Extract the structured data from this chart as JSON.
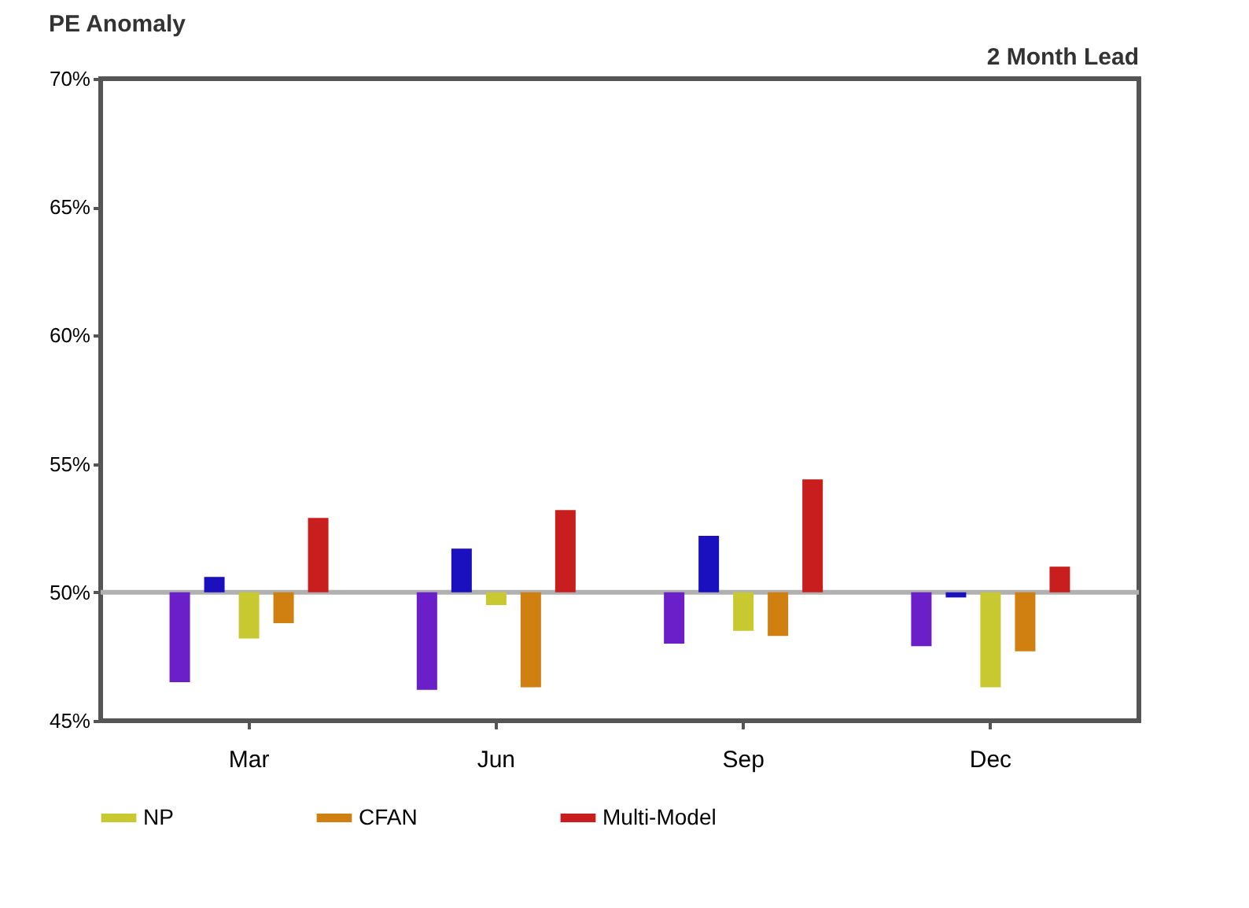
{
  "chart_data": {
    "type": "bar",
    "title": "PE Anomaly",
    "annotations": [
      "2 Month Lead"
    ],
    "categories": [
      "Mar",
      "Jun",
      "Sep",
      "Dec"
    ],
    "series": [
      {
        "color": "#6a1fc8",
        "base": [
          50,
          50,
          50,
          50
        ],
        "values": [
          -3.5,
          -3.8,
          -2.0,
          -2.1
        ]
      },
      {
        "color": "#1a10c0",
        "base": [
          50,
          50,
          50,
          50
        ],
        "values": [
          0.6,
          1.7,
          2.2,
          -0.2
        ]
      },
      {
        "name": "NP",
        "color": "#c8c830",
        "base": [
          50,
          50,
          50,
          50
        ],
        "values": [
          -1.8,
          -0.5,
          -1.5,
          -3.7
        ]
      },
      {
        "name": "CFAN",
        "color": "#d08010",
        "base": [
          50,
          50,
          50,
          50
        ],
        "values": [
          -1.2,
          -3.7,
          -1.7,
          -2.3
        ]
      },
      {
        "name": "Multi-Model",
        "color": "#c81e1e",
        "base": [
          50,
          50,
          50,
          50
        ],
        "values": [
          2.9,
          3.2,
          4.4,
          1.0
        ]
      }
    ],
    "ylim": [
      45,
      70
    ],
    "yticks": [
      {
        "value": 45,
        "label": "45%"
      },
      {
        "value": 50,
        "label": "50%"
      },
      {
        "value": 55,
        "label": "55%"
      },
      {
        "value": 60,
        "label": "60%"
      },
      {
        "value": 65,
        "label": "65%"
      },
      {
        "value": 70,
        "label": "70%"
      }
    ],
    "ref_lines": [
      {
        "axis": "y",
        "value": 50,
        "color": "#b0b0b0"
      }
    ],
    "legend": "bottom",
    "grid": false
  }
}
